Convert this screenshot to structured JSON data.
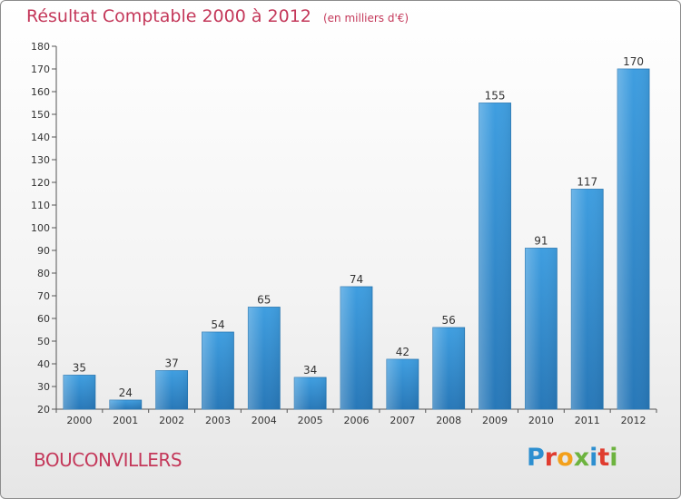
{
  "page": {
    "title": "Résultat Comptable 2000 à 2012",
    "unit_note": "(en milliers d'€)",
    "city": "BOUCONVILLERS",
    "logo_text": "Proxiti",
    "logo_colors": [
      "#2d8fd0",
      "#e03c2f",
      "#f3a01b",
      "#6db33f",
      "#2d8fd0",
      "#e03c2f",
      "#6db33f"
    ]
  },
  "chart_data": {
    "type": "bar",
    "title": "Résultat Comptable 2000 à 2012",
    "ylabel": "en milliers d'€",
    "categories": [
      "2000",
      "2001",
      "2002",
      "2003",
      "2004",
      "2005",
      "2006",
      "2007",
      "2008",
      "2009",
      "2010",
      "2011",
      "2012"
    ],
    "values": [
      35,
      24,
      37,
      54,
      65,
      34,
      74,
      42,
      56,
      155,
      91,
      117,
      170
    ],
    "ylim": [
      20,
      180
    ],
    "ytick_step": 10,
    "grid": false,
    "bar_color": "#3f9ee0",
    "bar_color_dark": "#2878b8"
  }
}
